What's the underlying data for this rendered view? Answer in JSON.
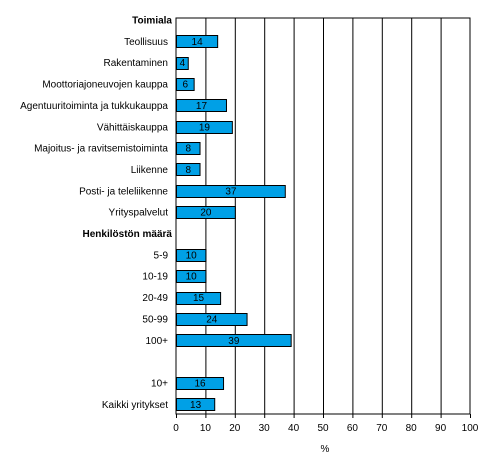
{
  "chart_data": {
    "type": "bar",
    "orientation": "horizontal",
    "xlabel": "%",
    "xlim": [
      0,
      100
    ],
    "xticks": [
      0,
      10,
      20,
      30,
      40,
      50,
      60,
      70,
      80,
      90,
      100
    ],
    "grid": "vertical",
    "bar_color": "#00a0e6",
    "rows": [
      {
        "kind": "header",
        "label": "Toimiala"
      },
      {
        "kind": "bar",
        "label": "Teollisuus",
        "value": 14
      },
      {
        "kind": "bar",
        "label": "Rakentaminen",
        "value": 4
      },
      {
        "kind": "bar",
        "label": "Moottoriajoneuvojen kauppa",
        "value": 6
      },
      {
        "kind": "bar",
        "label": "Agentuuritoiminta ja tukkukauppa",
        "value": 17
      },
      {
        "kind": "bar",
        "label": "Vähittäiskauppa",
        "value": 19
      },
      {
        "kind": "bar",
        "label": "Majoitus- ja ravitsemistoiminta",
        "value": 8
      },
      {
        "kind": "bar",
        "label": "Liikenne",
        "value": 8
      },
      {
        "kind": "bar",
        "label": "Posti- ja teleliikenne",
        "value": 37
      },
      {
        "kind": "bar",
        "label": "Yrityspalvelut",
        "value": 20
      },
      {
        "kind": "header",
        "label": "Henkilöstön määrä"
      },
      {
        "kind": "bar",
        "label": "5-9",
        "value": 10
      },
      {
        "kind": "bar",
        "label": "10-19",
        "value": 10
      },
      {
        "kind": "bar",
        "label": "20-49",
        "value": 15
      },
      {
        "kind": "bar",
        "label": "50-99",
        "value": 24
      },
      {
        "kind": "bar",
        "label": "100+",
        "value": 39
      },
      {
        "kind": "blank",
        "label": ""
      },
      {
        "kind": "bar",
        "label": "10+",
        "value": 16
      },
      {
        "kind": "bar",
        "label": "Kaikki yritykset",
        "value": 13
      }
    ]
  }
}
